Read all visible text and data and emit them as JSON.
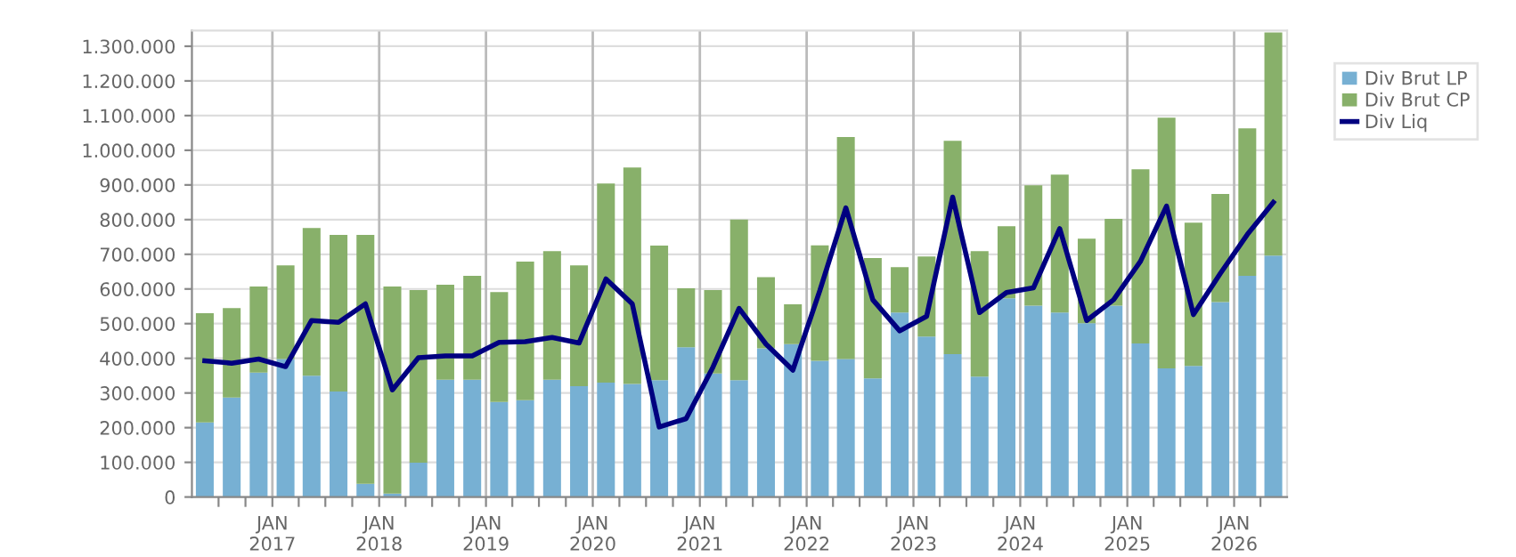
{
  "chart_data": {
    "type": "bar",
    "stacked": true,
    "x": [
      "2016-05-15",
      "2016-08-15",
      "2016-11-15",
      "2017-02-15",
      "2017-05-15",
      "2017-08-15",
      "2017-11-15",
      "2018-02-15",
      "2018-05-15",
      "2018-08-15",
      "2018-11-15",
      "2019-02-15",
      "2019-05-15",
      "2019-08-15",
      "2019-11-15",
      "2020-02-15",
      "2020-05-15",
      "2020-08-15",
      "2020-11-15",
      "2021-02-15",
      "2021-05-15",
      "2021-08-15",
      "2021-11-15",
      "2022-02-15",
      "2022-05-15",
      "2022-08-15",
      "2022-11-15",
      "2023-02-15",
      "2023-05-15",
      "2023-08-15",
      "2023-11-15",
      "2024-02-15",
      "2024-05-15",
      "2024-08-15",
      "2024-11-15",
      "2025-02-15",
      "2025-05-15",
      "2025-08-15",
      "2025-11-15",
      "2026-02-15",
      "2026-05-15"
    ],
    "series": [
      {
        "name": "Div Brut LP",
        "color": "#77b0d3",
        "values": [
          215000,
          287000,
          359000,
          398000,
          350000,
          304000,
          38000,
          10000,
          99000,
          338000,
          338000,
          274000,
          279000,
          338000,
          320000,
          330000,
          326000,
          337000,
          432000,
          356000,
          337000,
          429000,
          441000,
          393000,
          398000,
          342000,
          532000,
          463000,
          412000,
          347000,
          573000,
          552000,
          532000,
          501000,
          552000,
          443000,
          371000,
          378000,
          562000,
          638000,
          696000
        ]
      },
      {
        "name": "Div Brut CP",
        "color": "#88b06a",
        "values": [
          315000,
          258000,
          248000,
          270000,
          426000,
          452000,
          718000,
          597000,
          498000,
          274000,
          300000,
          317000,
          400000,
          371000,
          348000,
          574000,
          624000,
          388000,
          170000,
          241000,
          463000,
          205000,
          115000,
          333000,
          640000,
          347000,
          131000,
          231000,
          615000,
          362000,
          208000,
          347000,
          398000,
          244000,
          250000,
          502000,
          723000,
          413000,
          312000,
          425000,
          644000
        ]
      },
      {
        "name": "Div Liq",
        "type": "line",
        "color": "#000080",
        "marker": "none",
        "line_style": "solid",
        "values": [
          393000,
          386000,
          398000,
          376000,
          509000,
          504000,
          557000,
          309000,
          402000,
          407000,
          407000,
          446000,
          448000,
          460000,
          444000,
          629000,
          557000,
          202000,
          226000,
          375000,
          544000,
          441000,
          366000,
          595000,
          834000,
          569000,
          479000,
          521000,
          865000,
          532000,
          590000,
          603000,
          774000,
          509000,
          569000,
          680000,
          839000,
          526000,
          645000,
          757000,
          850000
        ]
      }
    ],
    "xlim": [
      "2016-04-01",
      "2026-07-01"
    ],
    "xticks": [
      {
        "value": "2016-07-01",
        "label": null
      },
      {
        "value": "2016-10-01",
        "label": null
      },
      {
        "value": "2017-01-01",
        "label": "JAN\n2017"
      },
      {
        "value": "2017-04-01",
        "label": null
      },
      {
        "value": "2017-07-01",
        "label": null
      },
      {
        "value": "2017-10-01",
        "label": null
      },
      {
        "value": "2018-01-01",
        "label": "JAN\n2018"
      },
      {
        "value": "2018-04-01",
        "label": null
      },
      {
        "value": "2018-07-01",
        "label": null
      },
      {
        "value": "2018-10-01",
        "label": null
      },
      {
        "value": "2019-01-01",
        "label": "JAN\n2019"
      },
      {
        "value": "2019-04-01",
        "label": null
      },
      {
        "value": "2019-07-01",
        "label": null
      },
      {
        "value": "2019-10-01",
        "label": null
      },
      {
        "value": "2020-01-01",
        "label": "JAN\n2020"
      },
      {
        "value": "2020-04-01",
        "label": null
      },
      {
        "value": "2020-07-01",
        "label": null
      },
      {
        "value": "2020-10-01",
        "label": null
      },
      {
        "value": "2021-01-01",
        "label": "JAN\n2021"
      },
      {
        "value": "2021-04-01",
        "label": null
      },
      {
        "value": "2021-07-01",
        "label": null
      },
      {
        "value": "2021-10-01",
        "label": null
      },
      {
        "value": "2022-01-01",
        "label": "JAN\n2022"
      },
      {
        "value": "2022-04-01",
        "label": null
      },
      {
        "value": "2022-07-01",
        "label": null
      },
      {
        "value": "2022-10-01",
        "label": null
      },
      {
        "value": "2023-01-01",
        "label": "JAN\n2023"
      },
      {
        "value": "2023-04-01",
        "label": null
      },
      {
        "value": "2023-07-01",
        "label": null
      },
      {
        "value": "2023-10-01",
        "label": null
      },
      {
        "value": "2024-01-01",
        "label": "JAN\n2024"
      },
      {
        "value": "2024-04-01",
        "label": null
      },
      {
        "value": "2024-07-01",
        "label": null
      },
      {
        "value": "2024-10-01",
        "label": null
      },
      {
        "value": "2025-01-01",
        "label": "JAN\n2025"
      },
      {
        "value": "2025-04-01",
        "label": null
      },
      {
        "value": "2025-07-01",
        "label": null
      },
      {
        "value": "2025-10-01",
        "label": null
      },
      {
        "value": "2026-01-01",
        "label": "JAN\n2026"
      },
      {
        "value": "2026-04-01",
        "label": null
      }
    ],
    "ylim": [
      0,
      1345000
    ],
    "yticks": [
      0,
      {
        "value": 100000,
        "label": "100.000"
      },
      {
        "value": 200000,
        "label": "200.000"
      },
      {
        "value": 300000,
        "label": "300.000"
      },
      {
        "value": 400000,
        "label": "400.000"
      },
      {
        "value": 500000,
        "label": "500.000"
      },
      {
        "value": 600000,
        "label": "600.000"
      },
      {
        "value": 700000,
        "label": "700.000"
      },
      {
        "value": 800000,
        "label": "800.000"
      },
      {
        "value": 900000,
        "label": "900.000"
      },
      {
        "value": 1000000,
        "label": "1.000.000"
      },
      {
        "value": 1100000,
        "label": "1.100.000"
      },
      {
        "value": 1200000,
        "label": "1.200.000"
      },
      {
        "value": 1300000,
        "label": "1.300.000"
      }
    ],
    "grid": true,
    "legend": "top right"
  }
}
